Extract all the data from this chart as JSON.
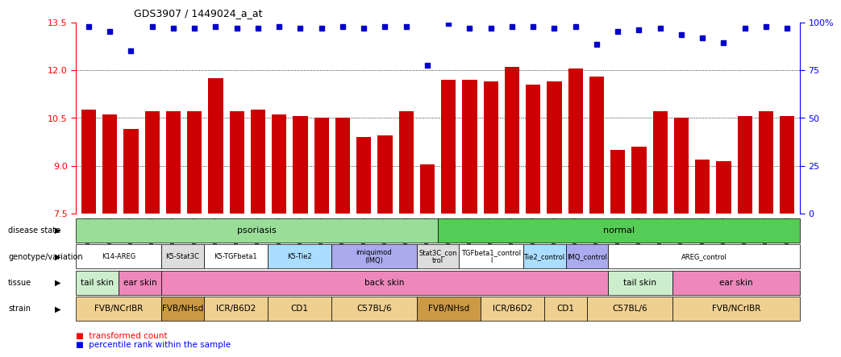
{
  "title": "GDS3907 / 1449024_a_at",
  "samples": [
    "GSM684694",
    "GSM684695",
    "GSM684696",
    "GSM684688",
    "GSM684689",
    "GSM684690",
    "GSM684700",
    "GSM684701",
    "GSM684704",
    "GSM684705",
    "GSM684706",
    "GSM684676",
    "GSM684677",
    "GSM684678",
    "GSM684682",
    "GSM684683",
    "GSM684684",
    "GSM684702",
    "GSM684703",
    "GSM684707",
    "GSM684708",
    "GSM684709",
    "GSM684679",
    "GSM684680",
    "GSM684681",
    "GSM684685",
    "GSM684686",
    "GSM684687",
    "GSM684697",
    "GSM684698",
    "GSM684699",
    "GSM684691",
    "GSM684692",
    "GSM684693"
  ],
  "bar_values": [
    10.75,
    10.6,
    10.15,
    10.7,
    10.7,
    10.7,
    11.75,
    10.7,
    10.75,
    10.6,
    10.55,
    10.5,
    10.5,
    9.9,
    9.95,
    10.7,
    9.05,
    11.7,
    11.7,
    11.65,
    12.1,
    11.55,
    11.65,
    12.05,
    11.8,
    9.5,
    9.6,
    10.7,
    10.5,
    9.2,
    9.15,
    10.55,
    10.7,
    10.55
  ],
  "percentile_values": [
    13.35,
    13.2,
    12.6,
    13.35,
    13.3,
    13.3,
    13.35,
    13.3,
    13.3,
    13.35,
    13.3,
    13.3,
    13.35,
    13.3,
    13.35,
    13.35,
    12.15,
    13.45,
    13.3,
    13.3,
    13.35,
    13.35,
    13.3,
    13.35,
    12.8,
    13.2,
    13.25,
    13.3,
    13.1,
    13.0,
    12.85,
    13.3,
    13.35,
    13.3
  ],
  "ylim_left": [
    7.5,
    13.5
  ],
  "ylim_right": [
    0,
    100
  ],
  "yticks_left": [
    7.5,
    9.0,
    10.5,
    12.0,
    13.5
  ],
  "yticks_right": [
    0,
    25,
    50,
    75,
    100
  ],
  "bar_color": "#cc0000",
  "dot_color": "#0000cc",
  "disease_state_groups": [
    {
      "label": "psoriasis",
      "start": 0,
      "end": 16,
      "color": "#99dd99"
    },
    {
      "label": "normal",
      "start": 17,
      "end": 33,
      "color": "#55cc55"
    }
  ],
  "genotype_groups": [
    {
      "label": "K14-AREG",
      "start": 0,
      "end": 3,
      "color": "#ffffff"
    },
    {
      "label": "K5-Stat3C",
      "start": 4,
      "end": 5,
      "color": "#dddddd"
    },
    {
      "label": "K5-TGFbeta1",
      "start": 6,
      "end": 8,
      "color": "#ffffff"
    },
    {
      "label": "K5-Tie2",
      "start": 9,
      "end": 11,
      "color": "#aaddff"
    },
    {
      "label": "imiquimod\n(IMQ)",
      "start": 12,
      "end": 15,
      "color": "#aaaaee"
    },
    {
      "label": "Stat3C_con\ntrol",
      "start": 16,
      "end": 17,
      "color": "#dddddd"
    },
    {
      "label": "TGFbeta1_control\nl",
      "start": 18,
      "end": 20,
      "color": "#ffffff"
    },
    {
      "label": "Tie2_control",
      "start": 21,
      "end": 22,
      "color": "#aaddff"
    },
    {
      "label": "IMQ_control",
      "start": 23,
      "end": 24,
      "color": "#aaaaee"
    },
    {
      "label": "AREG_control",
      "start": 25,
      "end": 33,
      "color": "#ffffff"
    }
  ],
  "tissue_groups": [
    {
      "label": "tail skin",
      "start": 0,
      "end": 1,
      "color": "#cceecc"
    },
    {
      "label": "ear skin",
      "start": 2,
      "end": 3,
      "color": "#ee88bb"
    },
    {
      "label": "back skin",
      "start": 4,
      "end": 24,
      "color": "#ee88bb"
    },
    {
      "label": "tail skin",
      "start": 25,
      "end": 27,
      "color": "#cceecc"
    },
    {
      "label": "ear skin",
      "start": 28,
      "end": 33,
      "color": "#ee88bb"
    }
  ],
  "strain_groups": [
    {
      "label": "FVB/NCrIBR",
      "start": 0,
      "end": 3,
      "color": "#f0d090"
    },
    {
      "label": "FVB/NHsd",
      "start": 4,
      "end": 5,
      "color": "#cc9944"
    },
    {
      "label": "ICR/B6D2",
      "start": 6,
      "end": 8,
      "color": "#f0d090"
    },
    {
      "label": "CD1",
      "start": 9,
      "end": 11,
      "color": "#f0d090"
    },
    {
      "label": "C57BL/6",
      "start": 12,
      "end": 15,
      "color": "#f0d090"
    },
    {
      "label": "FVB/NHsd",
      "start": 16,
      "end": 18,
      "color": "#cc9944"
    },
    {
      "label": "ICR/B6D2",
      "start": 19,
      "end": 21,
      "color": "#f0d090"
    },
    {
      "label": "CD1",
      "start": 22,
      "end": 23,
      "color": "#f0d090"
    },
    {
      "label": "C57BL/6",
      "start": 24,
      "end": 27,
      "color": "#f0d090"
    },
    {
      "label": "FVB/NCrIBR",
      "start": 28,
      "end": 33,
      "color": "#f0d090"
    }
  ]
}
